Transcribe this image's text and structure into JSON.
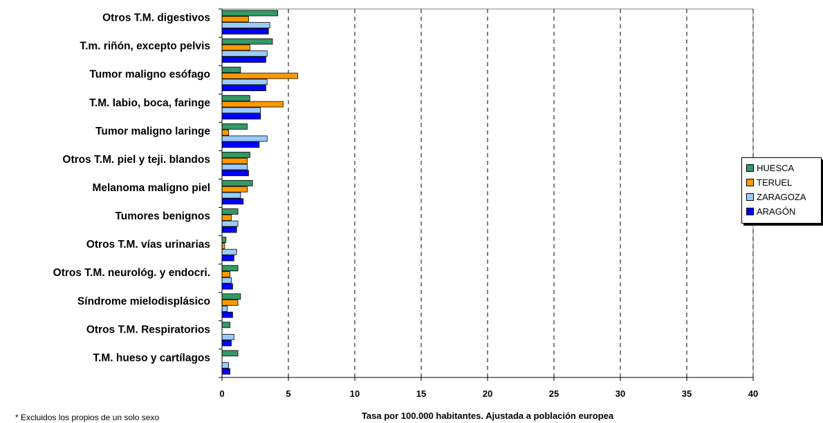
{
  "footnote": "* Excluidos los propios de un solo sexo",
  "chart_data": {
    "type": "bar",
    "orientation": "horizontal",
    "xlabel": "Tasa por 100.000 habitantes. Ajustada a población europea",
    "ylabel": "",
    "xlim": [
      0,
      40
    ],
    "xticks": [
      0,
      5,
      10,
      15,
      20,
      25,
      30,
      35,
      40
    ],
    "grid": "vertical dashed",
    "legend_position": "right",
    "categories": [
      "Otros T.M. digestivos",
      "T.m. riñón, excepto pelvis",
      "Tumor maligno esófago",
      "T.M. labio, boca, faringe",
      "Tumor maligno laringe",
      "Otros T.M. piel y teji. blandos",
      "Melanoma maligno piel",
      "Tumores benignos",
      "Otros T.M.  vías urinarias",
      "Otros T.M. neurológ. y endocri.",
      "Síndrome mielodisplásico",
      "Otros T.M. Respiratorios",
      "T.M.  hueso y cartílagos"
    ],
    "series": [
      {
        "name": "HUESCA",
        "color": "#339966",
        "values": [
          4.2,
          3.8,
          1.4,
          2.1,
          1.9,
          2.1,
          2.3,
          1.2,
          0.3,
          1.2,
          1.4,
          0.6,
          1.2
        ]
      },
      {
        "name": "TERUEL",
        "color": "#FF9900",
        "values": [
          2.0,
          2.1,
          5.7,
          4.6,
          0.5,
          1.9,
          1.9,
          0.7,
          0.2,
          0.6,
          1.2,
          0.0,
          0.0
        ]
      },
      {
        "name": "ZARAGOZA",
        "color": "#99CCFF",
        "values": [
          3.6,
          3.4,
          3.4,
          2.9,
          3.4,
          1.9,
          1.4,
          1.2,
          1.1,
          0.7,
          0.4,
          0.9,
          0.5
        ]
      },
      {
        "name": "ARAGÓN",
        "color": "#0000FF",
        "values": [
          3.5,
          3.3,
          3.3,
          2.9,
          2.8,
          2.0,
          1.6,
          1.1,
          0.9,
          0.8,
          0.8,
          0.7,
          0.6
        ]
      }
    ]
  }
}
